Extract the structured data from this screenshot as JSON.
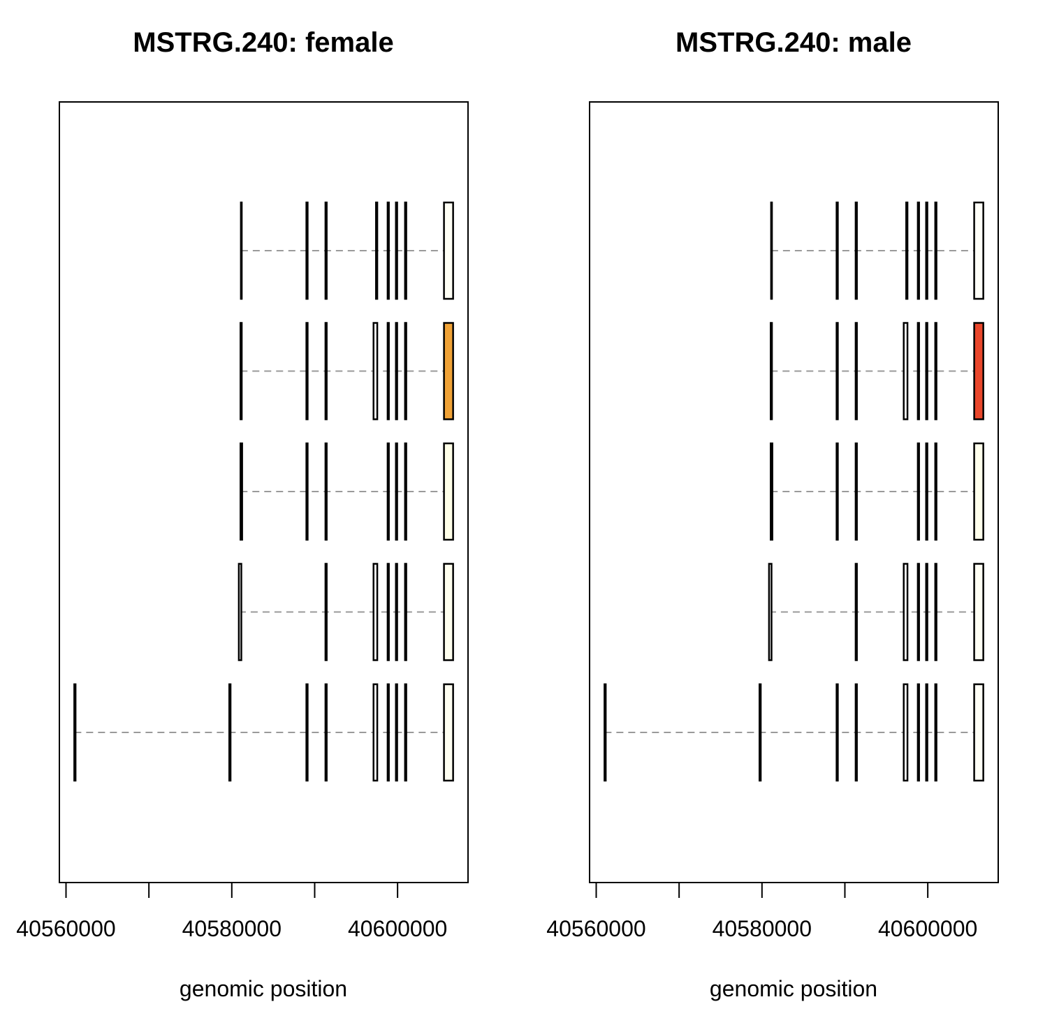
{
  "chart_data": [
    {
      "type": "transcript-structure",
      "title": "MSTRG.240: female",
      "xlabel": "genomic position",
      "ylabel": "",
      "xlim": [
        40559200,
        40608500
      ],
      "ticks": [
        40560000,
        40570000,
        40580000,
        40590000,
        40600000
      ],
      "tick_labels": [
        "40560000",
        "",
        "40580000",
        "",
        "40600000"
      ],
      "grid": false,
      "transcripts": [
        {
          "exons": [
            [
              40561000,
              40561150
            ],
            [
              40579700,
              40579850
            ],
            [
              40589000,
              40589150
            ],
            [
              40591300,
              40591450
            ],
            [
              40597100,
              40597550
            ],
            [
              40598800,
              40598950
            ],
            [
              40599800,
              40599950
            ],
            [
              40600900,
              40601050
            ],
            [
              40605600,
              40606700
            ]
          ],
          "fill": "#FFFFF2"
        },
        {
          "exons": [
            [
              40580850,
              40581150
            ],
            [
              40591300,
              40591450
            ],
            [
              40597100,
              40597550
            ],
            [
              40598800,
              40598950
            ],
            [
              40599800,
              40599950
            ],
            [
              40600900,
              40601050
            ],
            [
              40605600,
              40606700
            ]
          ],
          "fill": "#FFFFEF"
        },
        {
          "exons": [
            [
              40581050,
              40581250
            ],
            [
              40589000,
              40589150
            ],
            [
              40591300,
              40591450
            ],
            [
              40598800,
              40598950
            ],
            [
              40599800,
              40599950
            ],
            [
              40600900,
              40601050
            ],
            [
              40605600,
              40606700
            ]
          ],
          "fill": "#FFFFE8"
        },
        {
          "exons": [
            [
              40581050,
              40581200
            ],
            [
              40589000,
              40589150
            ],
            [
              40591300,
              40591450
            ],
            [
              40597100,
              40597550
            ],
            [
              40598800,
              40598950
            ],
            [
              40599800,
              40599950
            ],
            [
              40600900,
              40601050
            ],
            [
              40605600,
              40606700
            ]
          ],
          "fill": "#F0A236"
        },
        {
          "exons": [
            [
              40581100,
              40581200
            ],
            [
              40589000,
              40589150
            ],
            [
              40591300,
              40591450
            ],
            [
              40597400,
              40597550
            ],
            [
              40598800,
              40598950
            ],
            [
              40599800,
              40599950
            ],
            [
              40600900,
              40601050
            ],
            [
              40605600,
              40606700
            ]
          ],
          "fill": "#FFFFF5"
        }
      ]
    },
    {
      "type": "transcript-structure",
      "title": "MSTRG.240: male",
      "xlabel": "genomic position",
      "ylabel": "",
      "xlim": [
        40559200,
        40608500
      ],
      "ticks": [
        40560000,
        40570000,
        40580000,
        40590000,
        40600000
      ],
      "tick_labels": [
        "40560000",
        "",
        "40580000",
        "",
        "40600000"
      ],
      "grid": false,
      "transcripts": [
        {
          "exons": [
            [
              40561000,
              40561150
            ],
            [
              40579700,
              40579850
            ],
            [
              40589000,
              40589150
            ],
            [
              40591300,
              40591450
            ],
            [
              40597100,
              40597550
            ],
            [
              40598800,
              40598950
            ],
            [
              40599800,
              40599950
            ],
            [
              40600900,
              40601050
            ],
            [
              40605600,
              40606700
            ]
          ],
          "fill": "#FFFFF6"
        },
        {
          "exons": [
            [
              40580850,
              40581150
            ],
            [
              40591300,
              40591450
            ],
            [
              40597100,
              40597550
            ],
            [
              40598800,
              40598950
            ],
            [
              40599800,
              40599950
            ],
            [
              40600900,
              40601050
            ],
            [
              40605600,
              40606700
            ]
          ],
          "fill": "#FFFFF4"
        },
        {
          "exons": [
            [
              40581050,
              40581250
            ],
            [
              40589000,
              40589150
            ],
            [
              40591300,
              40591450
            ],
            [
              40598800,
              40598950
            ],
            [
              40599800,
              40599950
            ],
            [
              40600900,
              40601050
            ],
            [
              40605600,
              40606700
            ]
          ],
          "fill": "#FFFFEC"
        },
        {
          "exons": [
            [
              40581050,
              40581200
            ],
            [
              40589000,
              40589150
            ],
            [
              40591300,
              40591450
            ],
            [
              40597100,
              40597550
            ],
            [
              40598800,
              40598950
            ],
            [
              40599800,
              40599950
            ],
            [
              40600900,
              40601050
            ],
            [
              40605600,
              40606700
            ]
          ],
          "fill": "#E9472B"
        },
        {
          "exons": [
            [
              40581100,
              40581200
            ],
            [
              40589000,
              40589150
            ],
            [
              40591300,
              40591450
            ],
            [
              40597400,
              40597550
            ],
            [
              40598800,
              40598950
            ],
            [
              40599800,
              40599950
            ],
            [
              40600900,
              40601050
            ],
            [
              40605600,
              40606700
            ]
          ],
          "fill": "#FFFFF8"
        }
      ]
    }
  ]
}
